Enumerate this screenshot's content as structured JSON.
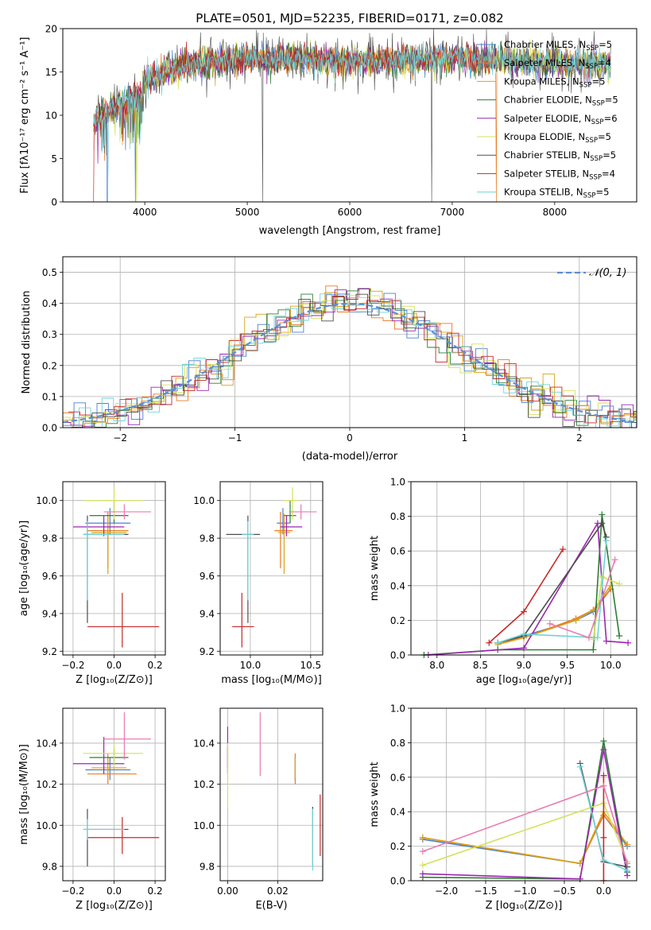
{
  "colors": {
    "Chabrier MILES": "#4a7fd4",
    "Salpeter MILES": "#e97b22",
    "Kroupa MILES": "#d9a21b",
    "Chabrier ELODIE": "#2e7d32",
    "Salpeter ELODIE": "#9c27b0",
    "Kroupa ELODIE": "#d4e15a",
    "Chabrier STELIB": "#4d4d4d",
    "Salpeter STELIB": "#c62828",
    "Kroupa STELIB": "#6fd3d8",
    "normal_curve": "#5b8fd8",
    "pink": "#e87bb0",
    "grid": "#b0b0b0"
  },
  "chart_data": [
    {
      "id": "spectrum",
      "type": "line",
      "title": "PLATE=0501, MJD=52235, FIBERID=0171, z=0.082",
      "xlabel": "wavelength [Angstrom, rest frame]",
      "ylabel": "Flux [fλ10⁻¹⁷ erg cm⁻² s⁻¹ A⁻¹]",
      "xlim": [
        3200,
        8800
      ],
      "ylim": [
        0,
        20
      ],
      "xticks": [
        4000,
        5000,
        6000,
        7000,
        8000
      ],
      "yticks": [
        0,
        5,
        10,
        15,
        20
      ],
      "grid": false,
      "legend_position": "right",
      "series": [
        {
          "name": "Chabrier MILES, N_SSP=5",
          "label": "Chabrier MILES, N",
          "sub": "SSP",
          "suffix": "=5"
        },
        {
          "name": "Salpeter MILES, N_SSP=4",
          "label": "Salpeter MILES, N",
          "sub": "SSP",
          "suffix": "=4"
        },
        {
          "name": "Kroupa MILES, N_SSP=5",
          "label": "Kroupa MILES, N",
          "sub": "SSP",
          "suffix": "=5"
        },
        {
          "name": "Chabrier ELODIE, N_SSP=5",
          "label": "Chabrier ELODIE, N",
          "sub": "SSP",
          "suffix": "=5"
        },
        {
          "name": "Salpeter ELODIE, N_SSP=6",
          "label": "Salpeter ELODIE, N",
          "sub": "SSP",
          "suffix": "=6"
        },
        {
          "name": "Kroupa ELODIE, N_SSP=5",
          "label": "Kroupa ELODIE, N",
          "sub": "SSP",
          "suffix": "=5"
        },
        {
          "name": "Chabrier STELIB, N_SSP=5",
          "label": "Chabrier STELIB, N",
          "sub": "SSP",
          "suffix": "=5"
        },
        {
          "name": "Salpeter STELIB, N_SSP=4",
          "label": "Salpeter STELIB, N",
          "sub": "SSP",
          "suffix": "=4"
        },
        {
          "name": "Kroupa STELIB, N_SSP=5",
          "label": "Kroupa STELIB, N",
          "sub": "SSP",
          "suffix": "=5"
        }
      ],
      "continuum": {
        "x": [
          3500,
          3700,
          3950,
          4000,
          4300,
          4500,
          5000,
          5500,
          6000,
          6500,
          7000,
          7500,
          8000,
          8500
        ],
        "y": [
          9,
          11,
          12,
          14,
          15.5,
          16,
          16.5,
          16.5,
          16.2,
          16.4,
          16.6,
          16.3,
          16.0,
          15.9
        ]
      }
    },
    {
      "id": "residuals",
      "type": "histogram",
      "xlabel": "(data-model)/error",
      "ylabel": "Normed distribution",
      "xlim": [
        -2.5,
        2.5
      ],
      "ylim": [
        0,
        0.55
      ],
      "xticks": [
        -2,
        -1,
        0,
        1,
        2
      ],
      "yticks": [
        0.0,
        0.1,
        0.2,
        0.3,
        0.4,
        0.5
      ],
      "grid": true,
      "legend": {
        "label": "𝒩(0, 1)",
        "position": "top-right"
      },
      "normal": {
        "mean": 0,
        "sigma": 1
      }
    },
    {
      "id": "age_vs_Z",
      "type": "errorbar",
      "xlabel": "Z [log₁₀(Z/Z⊙)]",
      "ylabel": "age  [log₁₀(age/yr)]",
      "xlim": [
        -0.25,
        0.25
      ],
      "ylim": [
        9.18,
        10.1
      ],
      "xticks": [
        -0.2,
        0.0,
        0.2
      ],
      "yticks": [
        9.2,
        9.4,
        9.6,
        9.8,
        10.0
      ],
      "grid": true,
      "points": [
        {
          "series": "Chabrier MILES",
          "x": -0.02,
          "xerr": [
            0.12,
            0.1
          ],
          "y": 9.88,
          "yerr": [
            0.06,
            0.08
          ]
        },
        {
          "series": "Salpeter MILES",
          "x": -0.03,
          "xerr": [
            0.1,
            0.1
          ],
          "y": 9.84,
          "yerr": [
            0.2,
            0.1
          ]
        },
        {
          "series": "Kroupa MILES",
          "x": -0.03,
          "xerr": [
            0.08,
            0.09
          ],
          "y": 9.83,
          "yerr": [
            0.22,
            0.1
          ]
        },
        {
          "series": "Chabrier ELODIE",
          "x": 0.0,
          "xerr": [
            0.12,
            0.07
          ],
          "y": 9.92,
          "yerr": [
            0.04,
            0.08
          ]
        },
        {
          "series": "Salpeter ELODIE",
          "x": -0.05,
          "xerr": [
            0.15,
            0.1
          ],
          "y": 9.86,
          "yerr": [
            0.05,
            0.06
          ]
        },
        {
          "series": "Kroupa ELODIE",
          "x": 0.0,
          "xerr": [
            0.15,
            0.14
          ],
          "y": 10.0,
          "yerr": [
            0.1,
            0.07
          ]
        },
        {
          "series": "Chabrier STELIB",
          "x": -0.13,
          "xerr": [
            0.02,
            0.2
          ],
          "y": 9.82,
          "yerr": [
            0.47,
            0.1
          ]
        },
        {
          "series": "Salpeter STELIB",
          "x": 0.04,
          "xerr": [
            0.17,
            0.18
          ],
          "y": 9.33,
          "yerr": [
            0.11,
            0.18
          ]
        },
        {
          "series": "Kroupa STELIB",
          "x": -0.13,
          "xerr": [
            0.02,
            0.18
          ],
          "y": 9.82,
          "yerr": [
            0.35,
            0.07
          ]
        },
        {
          "series": "pink",
          "x": 0.05,
          "xerr": [
            0.1,
            0.13
          ],
          "y": 9.94,
          "yerr": [
            0.04,
            0.04
          ]
        }
      ]
    },
    {
      "id": "age_vs_mass",
      "type": "errorbar",
      "xlabel": "mass [log₁₀(M/M⊙)]",
      "ylabel": "",
      "xlim": [
        9.75,
        10.6
      ],
      "ylim": [
        9.18,
        10.1
      ],
      "xticks": [
        10.0,
        10.5
      ],
      "yticks": [
        9.2,
        9.4,
        9.6,
        9.8,
        10.0
      ],
      "grid": true,
      "points": [
        {
          "series": "Chabrier MILES",
          "x": 10.27,
          "xerr": [
            0.05,
            0.06
          ],
          "y": 9.88,
          "yerr": [
            0.06,
            0.08
          ]
        },
        {
          "series": "Salpeter MILES",
          "x": 10.25,
          "xerr": [
            0.05,
            0.1
          ],
          "y": 9.84,
          "yerr": [
            0.2,
            0.1
          ]
        },
        {
          "series": "Kroupa MILES",
          "x": 10.28,
          "xerr": [
            0.05,
            0.05
          ],
          "y": 9.83,
          "yerr": [
            0.22,
            0.1
          ]
        },
        {
          "series": "Chabrier ELODIE",
          "x": 10.33,
          "xerr": [
            0.05,
            0.05
          ],
          "y": 9.92,
          "yerr": [
            0.04,
            0.08
          ]
        },
        {
          "series": "Salpeter ELODIE",
          "x": 10.3,
          "xerr": [
            0.05,
            0.13
          ],
          "y": 9.86,
          "yerr": [
            0.05,
            0.06
          ]
        },
        {
          "series": "Kroupa ELODIE",
          "x": 10.35,
          "xerr": [
            0.07,
            0.05
          ],
          "y": 10.0,
          "yerr": [
            0.1,
            0.07
          ]
        },
        {
          "series": "Chabrier STELIB",
          "x": 9.98,
          "xerr": [
            0.18,
            0.1
          ],
          "y": 9.82,
          "yerr": [
            0.47,
            0.1
          ]
        },
        {
          "series": "Salpeter STELIB",
          "x": 9.93,
          "xerr": [
            0.08,
            0.1
          ],
          "y": 9.33,
          "yerr": [
            0.11,
            0.18
          ]
        },
        {
          "series": "Kroupa STELIB",
          "x": 9.98,
          "xerr": [
            0.05,
            0.05
          ],
          "y": 9.82,
          "yerr": [
            0.35,
            0.07
          ]
        },
        {
          "series": "pink",
          "x": 10.42,
          "xerr": [
            0.1,
            0.13
          ],
          "y": 9.94,
          "yerr": [
            0.04,
            0.04
          ]
        }
      ]
    },
    {
      "id": "mass_weight_vs_age",
      "type": "line",
      "xlabel": "age  [log₁₀(age/yr)]",
      "ylabel": "mass weight",
      "xlim": [
        7.7,
        10.3
      ],
      "ylim": [
        0,
        1
      ],
      "xticks": [
        8.0,
        8.5,
        9.0,
        9.5,
        10.0
      ],
      "yticks": [
        0.0,
        0.2,
        0.4,
        0.6,
        0.8,
        1.0
      ],
      "grid": true,
      "series": [
        {
          "name": "Chabrier MILES",
          "x": [
            8.7,
            9.0,
            9.6,
            9.8,
            10.0
          ],
          "y": [
            0.07,
            0.11,
            0.2,
            0.25,
            0.38
          ]
        },
        {
          "name": "Salpeter MILES",
          "x": [
            8.7,
            9.0,
            9.6,
            9.8,
            10.0
          ],
          "y": [
            0.07,
            0.1,
            0.21,
            0.26,
            0.38
          ]
        },
        {
          "name": "Kroupa MILES",
          "x": [
            8.7,
            9.0,
            9.6,
            9.8,
            10.0
          ],
          "y": [
            0.06,
            0.1,
            0.2,
            0.26,
            0.4
          ]
        },
        {
          "name": "Chabrier ELODIE",
          "x": [
            7.85,
            8.7,
            9.8,
            9.9,
            10.1
          ],
          "y": [
            0.0,
            0.03,
            0.03,
            0.81,
            0.11
          ]
        },
        {
          "name": "Salpeter ELODIE",
          "x": [
            7.9,
            9.0,
            9.85,
            9.95,
            10.2
          ],
          "y": [
            0.0,
            0.04,
            0.76,
            0.08,
            0.07
          ]
        },
        {
          "name": "Kroupa ELODIE",
          "x": [
            9.8,
            9.9,
            10.1
          ],
          "y": [
            0.09,
            0.45,
            0.41
          ]
        },
        {
          "name": "Chabrier STELIB",
          "x": [
            8.7,
            9.0,
            9.9,
            9.95
          ],
          "y": [
            0.07,
            0.11,
            0.76,
            0.68
          ]
        },
        {
          "name": "Salpeter STELIB",
          "x": [
            8.6,
            9.0,
            9.45
          ],
          "y": [
            0.07,
            0.25,
            0.61
          ]
        },
        {
          "name": "Kroupa STELIB",
          "x": [
            8.7,
            9.0,
            9.85,
            9.95
          ],
          "y": [
            0.07,
            0.12,
            0.1,
            0.66
          ]
        },
        {
          "name": "pink",
          "x": [
            9.3,
            9.75,
            10.05
          ],
          "y": [
            0.18,
            0.1,
            0.55
          ]
        }
      ]
    },
    {
      "id": "mass_vs_Z",
      "type": "errorbar",
      "xlabel": "Z [log₁₀(Z/Z⊙)]",
      "ylabel": "mass [log₁₀(M/M⊙)]",
      "xlim": [
        -0.25,
        0.25
      ],
      "ylim": [
        9.73,
        10.57
      ],
      "xticks": [
        -0.2,
        0.0,
        0.2
      ],
      "yticks": [
        9.8,
        10.0,
        10.2,
        10.4
      ],
      "grid": true,
      "points": [
        {
          "series": "Chabrier MILES",
          "x": -0.02,
          "xerr": [
            0.12,
            0.1
          ],
          "y": 10.27,
          "yerr": [
            0.05,
            0.06
          ]
        },
        {
          "series": "Salpeter MILES",
          "x": -0.03,
          "xerr": [
            0.1,
            0.14
          ],
          "y": 10.25,
          "yerr": [
            0.05,
            0.1
          ]
        },
        {
          "series": "Kroupa MILES",
          "x": -0.03,
          "xerr": [
            0.08,
            0.09
          ],
          "y": 10.28,
          "yerr": [
            0.05,
            0.05
          ]
        },
        {
          "series": "Chabrier ELODIE",
          "x": 0.0,
          "xerr": [
            0.12,
            0.07
          ],
          "y": 10.33,
          "yerr": [
            0.05,
            0.05
          ]
        },
        {
          "series": "Salpeter ELODIE",
          "x": -0.05,
          "xerr": [
            0.15,
            0.1
          ],
          "y": 10.3,
          "yerr": [
            0.05,
            0.13
          ]
        },
        {
          "series": "Kroupa ELODIE",
          "x": 0.0,
          "xerr": [
            0.15,
            0.14
          ],
          "y": 10.35,
          "yerr": [
            0.07,
            0.05
          ]
        },
        {
          "series": "Chabrier STELIB",
          "x": -0.13,
          "xerr": [
            0.02,
            0.2
          ],
          "y": 9.98,
          "yerr": [
            0.18,
            0.1
          ]
        },
        {
          "series": "Salpeter STELIB",
          "x": 0.04,
          "xerr": [
            0.17,
            0.18
          ],
          "y": 9.94,
          "yerr": [
            0.08,
            0.1
          ]
        },
        {
          "series": "Kroupa STELIB",
          "x": -0.13,
          "xerr": [
            0.02,
            0.18
          ],
          "y": 9.98,
          "yerr": [
            0.05,
            0.05
          ]
        },
        {
          "series": "pink",
          "x": 0.05,
          "xerr": [
            0.1,
            0.13
          ],
          "y": 10.42,
          "yerr": [
            0.1,
            0.13
          ]
        }
      ]
    },
    {
      "id": "mass_vs_EBV",
      "type": "errorbar",
      "xlabel": "E(B-V)",
      "ylabel": "",
      "xlim": [
        -0.003,
        0.038
      ],
      "ylim": [
        9.73,
        10.57
      ],
      "xticks": [
        0.0,
        0.02
      ],
      "xtick_labels": [
        "0.00",
        "0.02"
      ],
      "yticks": [
        9.8,
        10.0,
        10.2,
        10.4
      ],
      "grid": true,
      "points": [
        {
          "series": "Chabrier MILES",
          "x": 0.027,
          "y": 10.27,
          "yerr": [
            0.05,
            0.06
          ]
        },
        {
          "series": "Salpeter MILES",
          "x": 0.027,
          "y": 10.25,
          "yerr": [
            0.05,
            0.1
          ]
        },
        {
          "series": "Kroupa MILES",
          "x": 0.027,
          "y": 10.28,
          "yerr": [
            0.05,
            0.05
          ]
        },
        {
          "series": "Chabrier ELODIE",
          "x": 0.0,
          "y": 10.33,
          "yerr": [
            0.05,
            0.05
          ]
        },
        {
          "series": "Salpeter ELODIE",
          "x": 0.0,
          "y": 10.3,
          "yerr": [
            0.05,
            0.18
          ]
        },
        {
          "series": "Kroupa ELODIE",
          "x": 0.0,
          "y": 10.35,
          "yerr": [
            0.27,
            0.05
          ]
        },
        {
          "series": "Chabrier STELIB",
          "x": 0.034,
          "y": 9.98,
          "yerr": [
            0.18,
            0.11
          ]
        },
        {
          "series": "Salpeter STELIB",
          "x": 0.037,
          "y": 10.0,
          "yerr": [
            0.15,
            0.15
          ]
        },
        {
          "series": "Kroupa STELIB",
          "x": 0.034,
          "y": 9.98,
          "yerr": [
            0.2,
            0.1
          ]
        },
        {
          "series": "pink",
          "x": 0.013,
          "y": 10.42,
          "yerr": [
            0.18,
            0.13
          ]
        }
      ]
    },
    {
      "id": "mass_weight_vs_Z",
      "type": "line",
      "xlabel": "Z [log₁₀(Z/Z⊙)]",
      "ylabel": "mass weight",
      "xlim": [
        -2.45,
        0.42
      ],
      "ylim": [
        0,
        1
      ],
      "xticks": [
        -2.0,
        -1.5,
        -1.0,
        -0.5,
        0.0
      ],
      "yticks": [
        0.0,
        0.2,
        0.4,
        0.6,
        0.8,
        1.0
      ],
      "grid": true,
      "series": [
        {
          "name": "Chabrier MILES",
          "x": [
            -2.3,
            -0.3,
            0.0,
            0.3
          ],
          "y": [
            0.24,
            0.1,
            0.38,
            0.2
          ]
        },
        {
          "name": "Salpeter MILES",
          "x": [
            -2.3,
            -0.3,
            0.0,
            0.3
          ],
          "y": [
            0.25,
            0.1,
            0.38,
            0.21
          ]
        },
        {
          "name": "Kroupa MILES",
          "x": [
            -2.3,
            -0.3,
            0.0,
            0.3
          ],
          "y": [
            0.25,
            0.1,
            0.4,
            0.21
          ]
        },
        {
          "name": "Chabrier ELODIE",
          "x": [
            -2.3,
            -0.3,
            0.0,
            0.3
          ],
          "y": [
            0.02,
            0.01,
            0.81,
            0.05
          ]
        },
        {
          "name": "Salpeter ELODIE",
          "x": [
            -2.3,
            -0.3,
            0.0,
            0.3
          ],
          "y": [
            0.04,
            0.01,
            0.76,
            0.03
          ]
        },
        {
          "name": "Kroupa ELODIE",
          "x": [
            -2.3,
            0.0,
            0.3
          ],
          "y": [
            0.09,
            0.45,
            0.11
          ]
        },
        {
          "name": "Chabrier STELIB",
          "x": [
            -0.3,
            0.0,
            0.3
          ],
          "y": [
            0.68,
            0.11,
            0.08
          ]
        },
        {
          "name": "Salpeter STELIB",
          "x": [
            0.0,
            0.0,
            0.0
          ],
          "y": [
            0.61,
            0.25,
            0.0
          ]
        },
        {
          "name": "Kroupa STELIB",
          "x": [
            -0.3,
            0.0,
            0.3
          ],
          "y": [
            0.66,
            0.12,
            0.06
          ]
        },
        {
          "name": "pink",
          "x": [
            -2.3,
            0.0,
            0.3
          ],
          "y": [
            0.17,
            0.55,
            0.1
          ]
        }
      ]
    }
  ]
}
